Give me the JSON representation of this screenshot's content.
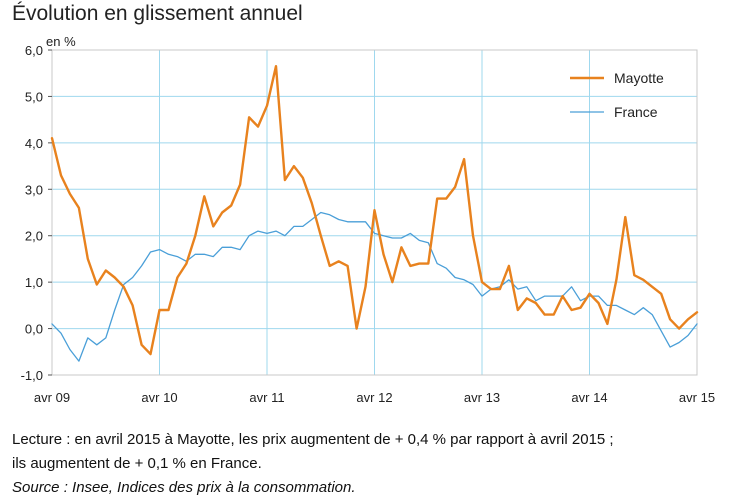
{
  "chart_data": {
    "type": "line",
    "title": "Évolution en glissement annuel",
    "ylabel": "en %",
    "xlabel": "",
    "ylim": [
      -1,
      6
    ],
    "y_ticks": [
      "6,0",
      "5,0",
      "4,0",
      "3,0",
      "2,0",
      "1,0",
      "0,0",
      "-1,0"
    ],
    "x_tick_labels": [
      "avr 09",
      "avr 10",
      "avr 11",
      "avr 12",
      "avr 13",
      "avr 14",
      "avr 15"
    ],
    "grid": true,
    "legend_position": "top-right",
    "series": [
      {
        "name": "Mayotte",
        "color": "#e8821e",
        "values": [
          4.1,
          3.3,
          2.9,
          2.6,
          1.5,
          0.95,
          1.25,
          1.1,
          0.9,
          0.5,
          -0.35,
          -0.55,
          0.4,
          0.4,
          1.1,
          1.4,
          2.0,
          2.85,
          2.2,
          2.5,
          2.65,
          3.1,
          4.55,
          4.35,
          4.8,
          5.65,
          3.2,
          3.5,
          3.25,
          2.7,
          2.0,
          1.35,
          1.45,
          1.35,
          0.0,
          0.9,
          2.55,
          1.6,
          1.0,
          1.75,
          1.35,
          1.4,
          1.4,
          2.8,
          2.8,
          3.05,
          3.65,
          2.0,
          1.0,
          0.85,
          0.85,
          1.35,
          0.4,
          0.65,
          0.55,
          0.3,
          0.3,
          0.7,
          0.4,
          0.45,
          0.75,
          0.55,
          0.1,
          1.05,
          2.4,
          1.15,
          1.05,
          0.9,
          0.75,
          0.2,
          0.0,
          0.2,
          0.35
        ],
        "labels": {
          "x_first": "avr 09",
          "x_last": "avr 15"
        }
      },
      {
        "name": "France",
        "color": "#4a9fd8",
        "values": [
          0.1,
          -0.1,
          -0.45,
          -0.7,
          -0.2,
          -0.35,
          -0.2,
          0.4,
          0.95,
          1.1,
          1.35,
          1.65,
          1.7,
          1.6,
          1.55,
          1.45,
          1.6,
          1.6,
          1.55,
          1.75,
          1.75,
          1.7,
          2.0,
          2.1,
          2.05,
          2.1,
          2.0,
          2.2,
          2.2,
          2.35,
          2.5,
          2.45,
          2.35,
          2.3,
          2.3,
          2.3,
          2.05,
          2.0,
          1.95,
          1.95,
          2.05,
          1.9,
          1.85,
          1.4,
          1.3,
          1.1,
          1.05,
          0.95,
          0.7,
          0.85,
          0.9,
          1.05,
          0.85,
          0.9,
          0.6,
          0.7,
          0.7,
          0.7,
          0.9,
          0.6,
          0.7,
          0.7,
          0.5,
          0.5,
          0.4,
          0.3,
          0.45,
          0.3,
          -0.05,
          -0.4,
          -0.3,
          -0.15,
          0.1
        ]
      }
    ]
  },
  "note": {
    "line1": "Lecture : en avril 2015 à Mayotte, les prix augmentent de + 0,4 % par rapport à avril 2015 ;",
    "line2": "ils augmentent de + 0,1 % en France.",
    "line3": "Source : Insee, Indices des prix à la consommation."
  }
}
